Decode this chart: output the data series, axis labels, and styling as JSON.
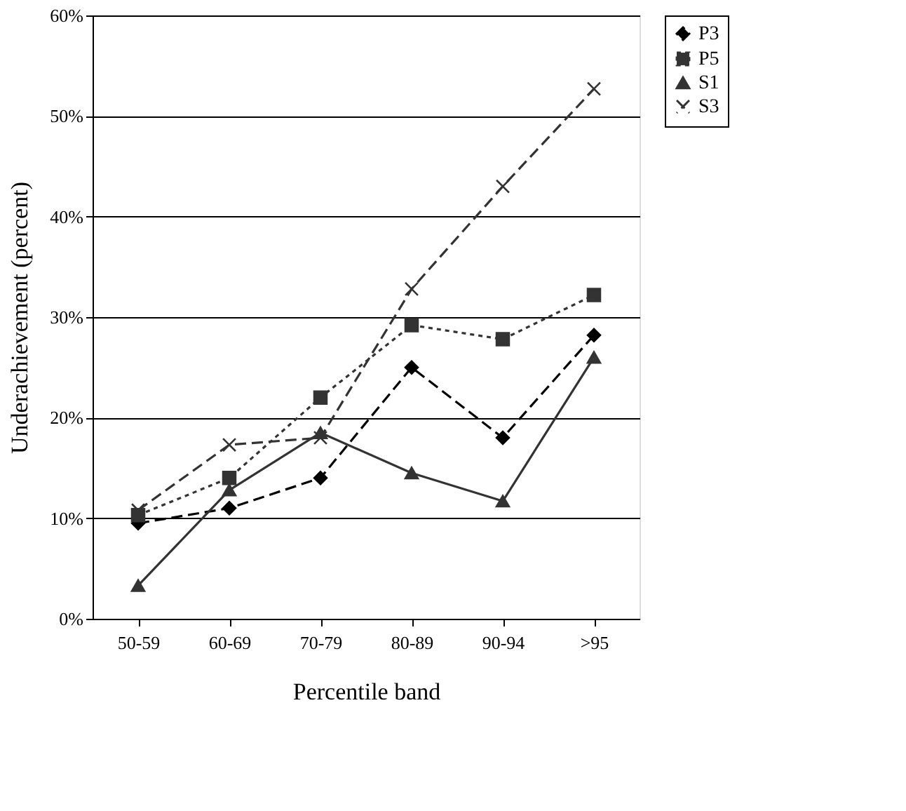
{
  "chart_data": {
    "type": "line",
    "xlabel": "Percentile band",
    "ylabel": "Underachievement (percent)",
    "categories": [
      "50-59",
      "60-69",
      "70-79",
      "80-89",
      "90-94",
      ">95"
    ],
    "series": [
      {
        "name": "P3",
        "color": "#000000",
        "marker": "diamond",
        "line_style": "dashed",
        "values": [
          9.5,
          11,
          14,
          25,
          18,
          28.2
        ]
      },
      {
        "name": "P5",
        "color": "#333333",
        "marker": "square",
        "line_style": "dotted",
        "values": [
          10.3,
          14,
          22,
          29.2,
          27.8,
          32.2
        ]
      },
      {
        "name": "S1",
        "color": "#333333",
        "marker": "triangle",
        "line_style": "solid",
        "values": [
          3.3,
          12.8,
          18.5,
          14.5,
          11.7,
          26
        ]
      },
      {
        "name": "S3",
        "color": "#333333",
        "marker": "cross",
        "line_style": "dashed",
        "values": [
          10.8,
          17.3,
          18,
          32.8,
          43,
          52.7
        ]
      }
    ],
    "ylim": [
      0,
      60
    ],
    "yticks": [
      {
        "value": 0,
        "label": "0%"
      },
      {
        "value": 10,
        "label": "10%"
      },
      {
        "value": 20,
        "label": "20%"
      },
      {
        "value": 30,
        "label": "30%"
      },
      {
        "value": 40,
        "label": "40%"
      },
      {
        "value": 50,
        "label": "50%"
      },
      {
        "value": 60,
        "label": "60%"
      }
    ],
    "grid": "y",
    "legend": "right"
  }
}
